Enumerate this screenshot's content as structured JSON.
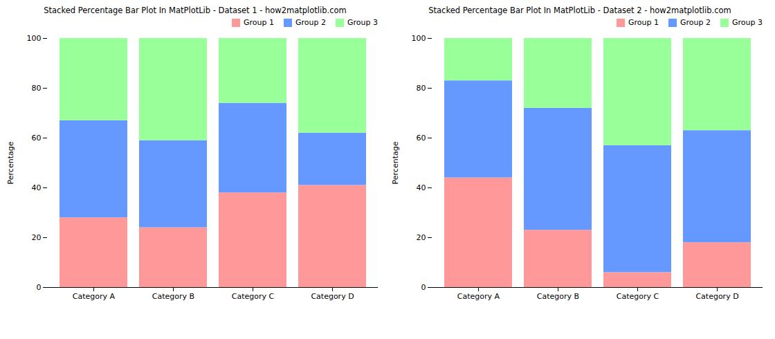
{
  "chart_data": [
    {
      "type": "bar",
      "stacked": true,
      "title": "Stacked Percentage Bar Plot In MatPlotLib - Dataset 1 - how2matplotlib.com",
      "ylabel": "Percentage",
      "categories": [
        "Category A",
        "Category B",
        "Category C",
        "Category D"
      ],
      "series": [
        {
          "name": "Group 1",
          "color": "#FF9999",
          "values": [
            28,
            24,
            38,
            41
          ]
        },
        {
          "name": "Group 2",
          "color": "#6699FF",
          "values": [
            39,
            35,
            36,
            21
          ]
        },
        {
          "name": "Group 3",
          "color": "#99FF99",
          "values": [
            33,
            41,
            26,
            38
          ]
        }
      ],
      "ylim": [
        0,
        100
      ],
      "yticks": [
        0,
        20,
        40,
        60,
        80,
        100
      ],
      "grid": false,
      "legend": "upper right"
    },
    {
      "type": "bar",
      "stacked": true,
      "title": "Stacked Percentage Bar Plot In MatPlotLib - Dataset 2 - how2matplotlib.com",
      "ylabel": "Percentage",
      "categories": [
        "Category A",
        "Category B",
        "Category C",
        "Category D"
      ],
      "series": [
        {
          "name": "Group 1",
          "color": "#FF9999",
          "values": [
            44,
            23,
            6,
            18
          ]
        },
        {
          "name": "Group 2",
          "color": "#6699FF",
          "values": [
            39,
            49,
            51,
            45
          ]
        },
        {
          "name": "Group 3",
          "color": "#99FF99",
          "values": [
            17,
            28,
            43,
            37
          ]
        }
      ],
      "ylim": [
        0,
        100
      ],
      "yticks": [
        0,
        20,
        40,
        60,
        80,
        100
      ],
      "grid": false,
      "legend": "upper right"
    }
  ]
}
